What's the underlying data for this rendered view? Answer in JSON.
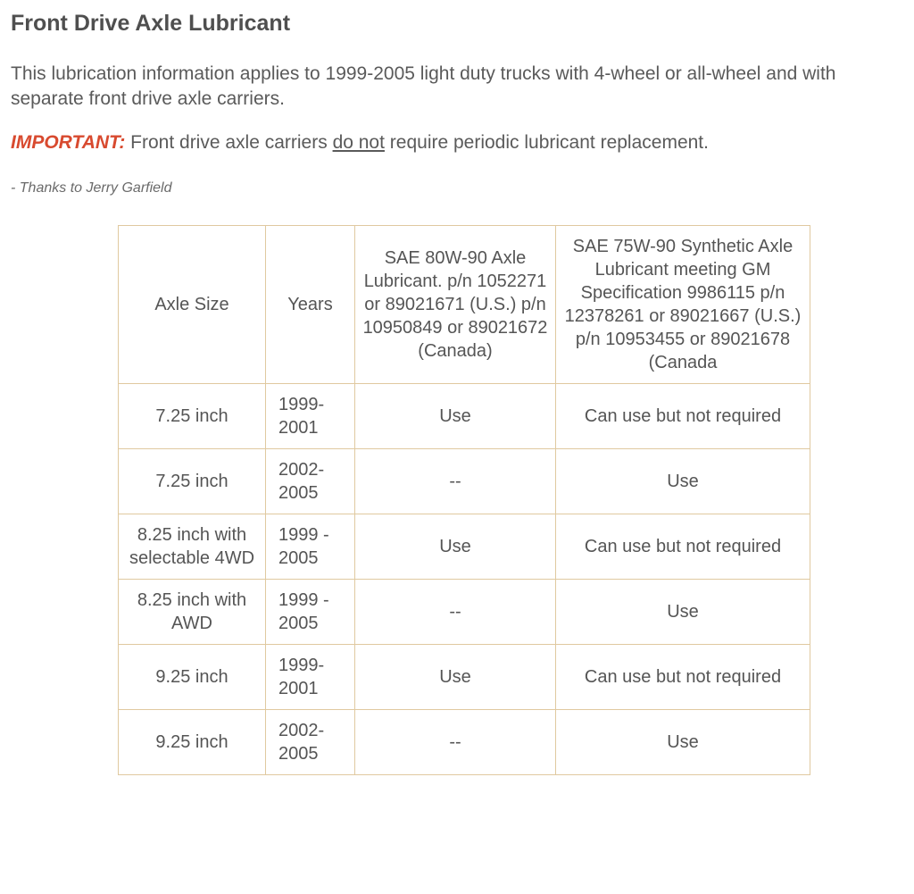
{
  "title": "Front Drive Axle Lubricant",
  "intro": "This lubrication information applies to 1999-2005 light duty trucks with 4-wheel or all-wheel and with separate front drive axle carriers.",
  "important_label": "IMPORTANT:",
  "important_before": " Front drive axle carriers ",
  "important_underline": "do not",
  "important_after": " require periodic lubricant replacement.",
  "credit": "- Thanks to Jerry Garfield",
  "table": {
    "columns": [
      "Axle Size",
      "Years",
      "SAE 80W-90 Axle Lubricant.\np/n 1052271 or 89021671 (U.S.)\np/n 10950849 or 89021672 (Canada)",
      "SAE 75W-90 Synthetic Axle Lubricant meeting GM Specification 9986115\np/n 12378261 or 89021667 (U.S.) p/n 10953455 or 89021678 (Canada"
    ],
    "rows": [
      [
        "7.25 inch",
        "1999-2001",
        "Use",
        "Can use but not required"
      ],
      [
        "7.25 inch",
        "2002-2005",
        "--",
        "Use"
      ],
      [
        "8.25 inch with selectable 4WD",
        "1999 - 2005",
        "Use",
        "Can use but not required"
      ],
      [
        "8.25 inch with AWD",
        "1999 - 2005",
        "--",
        "Use"
      ],
      [
        "9.25 inch",
        "1999-2001",
        "Use",
        "Can use but not required"
      ],
      [
        "9.25 inch",
        "2002-2005",
        "--",
        "Use"
      ]
    ],
    "border_color": "#e0c9a0",
    "text_color": "#555555",
    "header_fontsize": 20,
    "cell_fontsize": 20
  },
  "colors": {
    "title": "#4f4f4f",
    "body": "#5a5a5a",
    "important": "#d84a2f",
    "credit": "#6a6a6a",
    "background": "#ffffff"
  }
}
